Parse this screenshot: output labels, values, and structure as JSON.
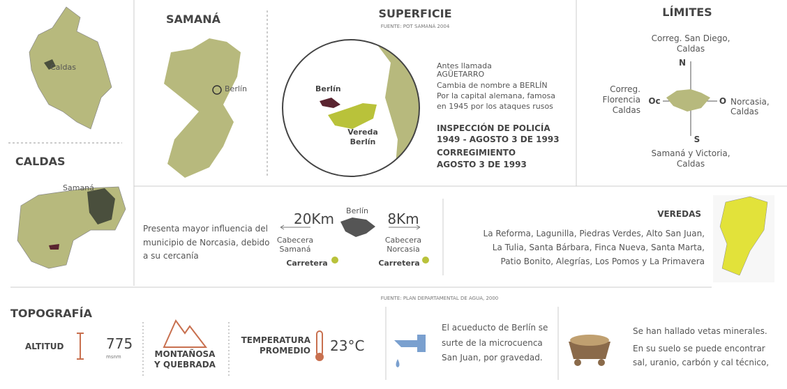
{
  "colombia": {
    "label": "Caldas"
  },
  "caldas": {
    "title": "CALDAS",
    "label": "Samaná"
  },
  "samana": {
    "title": "SAMANÁ",
    "label": "Berlín"
  },
  "superficie": {
    "title": "SUPERFICIE",
    "source": "FUENTE: POT SAMANÁ 2004",
    "map_berlin": "Berlín",
    "map_vereda": [
      "Vereda",
      "Berlín"
    ],
    "history": [
      "Antes llamada",
      "AGÜETARRO",
      "Cambia de nombre a BERLÍN",
      "Por la capital alemana, famosa",
      "en 1945 por los ataques rusos"
    ],
    "inspeccion": [
      "INSPECCIÓN DE POLICÍA",
      "1949 - AGOSTO 3 DE 1993"
    ],
    "corregimiento": [
      "CORREGIMIENTO",
      "AGOSTO 3 DE 1993"
    ]
  },
  "limites": {
    "title": "LÍMITES",
    "north": [
      "Correg. San Diego,",
      "Caldas"
    ],
    "west": [
      "Correg.",
      "Florencia",
      "Caldas"
    ],
    "east": [
      "Norcasia,",
      "Caldas"
    ],
    "south": [
      "Samaná y Victoria,",
      "Caldas"
    ],
    "compass": {
      "n": "N",
      "w": "Oc",
      "e": "O",
      "s": "S"
    }
  },
  "influencia": {
    "text": [
      "Presenta mayor influencia del",
      "municipio de Norcasia, debido",
      "a su cercanía"
    ],
    "left": {
      "distance": "20Km",
      "label": [
        "Cabecera",
        "Samaná"
      ],
      "mode": "Carretera"
    },
    "center": "Berlín",
    "right": {
      "distance": "8Km",
      "label": [
        "Cabecera",
        "Norcasia"
      ],
      "mode": "Carretera"
    }
  },
  "veredas": {
    "title": "VEREDAS",
    "lines": [
      "La Reforma, Lagunilla, Piedras Verdes, Alto San Juan,",
      "La Tulia, Santa Bárbara, Finca Nueva, Santa Marta,",
      "Patio Bonito, Alegrías, Los Pomos y La Primavera"
    ]
  },
  "topografia": {
    "source": "FUENTE: PLAN DEPARTAMENTAL DE AGUA, 2000",
    "title": "TOPOGRAFÍA",
    "altitud": {
      "label": "ALTITUD",
      "value": "775",
      "unit": "msnm"
    },
    "relieve": [
      "MONTAÑOSA",
      "Y QUEBRADA"
    ],
    "temperatura": {
      "label": [
        "TEMPERATURA",
        "PROMEDIO"
      ],
      "value": "23°C"
    },
    "acueducto": [
      "El acueducto de Berlín se",
      "surte de la microcuenca",
      "San Juan, por gravedad."
    ],
    "minerales": [
      "Se han hallado vetas minerales.",
      "En su suelo se puede encontrar",
      "sal, uranio, carbón y cal técnico,"
    ]
  }
}
